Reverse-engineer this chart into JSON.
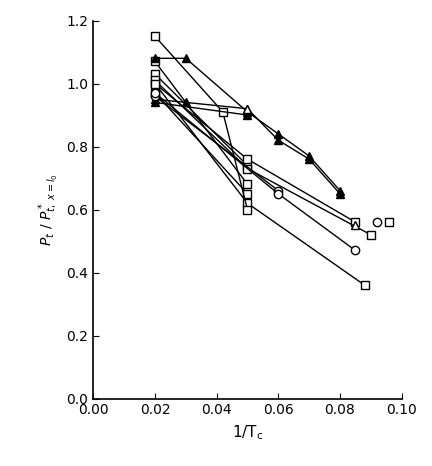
{
  "title": "",
  "xlabel": "1/T_c",
  "ylabel": "P_t / P*_{t,x=lo}",
  "xlim": [
    0.0,
    0.1
  ],
  "ylim": [
    0.0,
    1.2
  ],
  "xticks": [
    0.0,
    0.02,
    0.04,
    0.06,
    0.08,
    0.1
  ],
  "yticks": [
    0.0,
    0.2,
    0.4,
    0.6,
    0.8,
    1.0,
    1.2
  ],
  "series": [
    {
      "x": [
        0.02,
        0.05
      ],
      "y": [
        1.07,
        0.68
      ],
      "marker": "s",
      "filled": false,
      "color": "black",
      "linestyle": "-"
    },
    {
      "x": [
        0.02,
        0.05
      ],
      "y": [
        1.03,
        0.74
      ],
      "marker": "s",
      "filled": false,
      "color": "black",
      "linestyle": "-"
    },
    {
      "x": [
        0.02,
        0.05,
        0.085
      ],
      "y": [
        1.0,
        0.76,
        0.56
      ],
      "marker": "s",
      "filled": false,
      "color": "black",
      "linestyle": "-"
    },
    {
      "x": [
        0.02,
        0.05,
        0.09
      ],
      "y": [
        1.01,
        0.73,
        0.52
      ],
      "marker": "s",
      "filled": false,
      "color": "black",
      "linestyle": "-"
    },
    {
      "x": [
        0.02,
        0.05,
        0.088
      ],
      "y": [
        1.0,
        0.62,
        0.36
      ],
      "marker": "s",
      "filled": false,
      "color": "black",
      "linestyle": "-"
    },
    {
      "x": [
        0.02,
        0.05
      ],
      "y": [
        0.97,
        0.65
      ],
      "marker": "s",
      "filled": false,
      "color": "black",
      "linestyle": "-"
    },
    {
      "x": [
        0.02,
        0.042,
        0.05
      ],
      "y": [
        1.15,
        0.91,
        0.6
      ],
      "marker": "s",
      "filled": false,
      "color": "black",
      "linestyle": "-"
    },
    {
      "x": [
        0.02,
        0.05
      ],
      "y": [
        0.94,
        0.9
      ],
      "marker": "^",
      "filled": true,
      "color": "black",
      "linestyle": "-"
    },
    {
      "x": [
        0.02,
        0.03,
        0.05,
        0.06,
        0.07,
        0.08
      ],
      "y": [
        1.08,
        1.08,
        0.91,
        0.84,
        0.77,
        0.66
      ],
      "marker": "^",
      "filled": true,
      "color": "black",
      "linestyle": "-"
    },
    {
      "x": [
        0.02,
        0.03,
        0.05,
        0.06,
        0.07,
        0.08
      ],
      "y": [
        0.95,
        0.94,
        0.92,
        0.82,
        0.76,
        0.65
      ],
      "marker": "^",
      "filled": true,
      "color": "black",
      "linestyle": "-"
    },
    {
      "x": [
        0.02,
        0.06
      ],
      "y": [
        0.96,
        0.66
      ],
      "marker": "o",
      "filled": false,
      "color": "black",
      "linestyle": "-"
    },
    {
      "x": [
        0.02,
        0.06,
        0.085
      ],
      "y": [
        0.97,
        0.65,
        0.47
      ],
      "marker": "o",
      "filled": false,
      "color": "black",
      "linestyle": "-"
    },
    {
      "x": [
        0.05,
        0.085
      ],
      "y": [
        0.92,
        0.55
      ],
      "marker": "^",
      "filled": false,
      "color": "black",
      "linestyle": ""
    },
    {
      "x": [
        0.092
      ],
      "y": [
        0.56
      ],
      "marker": "o",
      "filled": false,
      "color": "black",
      "linestyle": ""
    },
    {
      "x": [
        0.096
      ],
      "y": [
        0.56
      ],
      "marker": "s",
      "filled": false,
      "color": "black",
      "linestyle": ""
    }
  ],
  "figsize": [
    4.32,
    4.66
  ],
  "dpi": 100
}
